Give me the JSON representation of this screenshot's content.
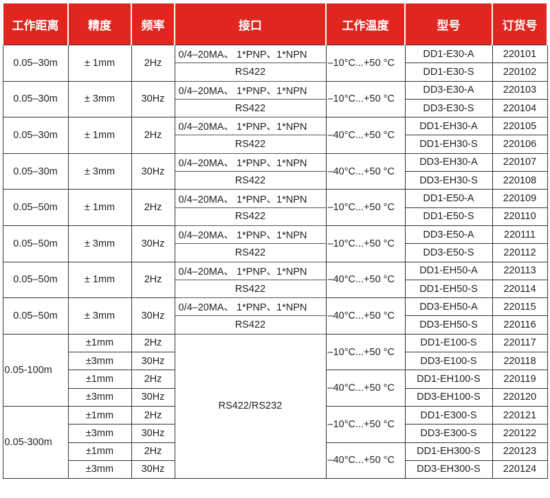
{
  "headers": [
    "工作距离",
    "精度",
    "频率",
    "接口",
    "工作温度",
    "型号",
    "订货号"
  ],
  "top_groups": [
    {
      "distance": "0.05–30m",
      "accuracy": "± 1mm",
      "freq": "2Hz",
      "iface": [
        "0/4–20MA、 1*PNP、1*NPN",
        "RS422"
      ],
      "temp": "–10°C...+50 °C",
      "models": [
        "DD1-E30-A",
        "DD1-E30-S"
      ],
      "codes": [
        "220101",
        "220102"
      ]
    },
    {
      "distance": "0.05–30m",
      "accuracy": "± 3mm",
      "freq": "30Hz",
      "iface": [
        "0/4–20MA、 1*PNP、1*NPN",
        "RS422"
      ],
      "temp": "–10°C...+50 °C",
      "models": [
        "DD3-E30-A",
        "DD3-E30-S"
      ],
      "codes": [
        "220103",
        "220104"
      ]
    },
    {
      "distance": "0.05–30m",
      "accuracy": "± 1mm",
      "freq": "2Hz",
      "iface": [
        "0/4–20MA、 1*PNP、1*NPN",
        "RS422"
      ],
      "temp": "–40°C...+50 °C",
      "models": [
        "DD1-EH30-A",
        "DD1-EH30-S"
      ],
      "codes": [
        "220105",
        "220106"
      ]
    },
    {
      "distance": "0.05–30m",
      "accuracy": "± 3mm",
      "freq": "30Hz",
      "iface": [
        "0/4–20MA、 1*PNP、1*NPN",
        "RS422"
      ],
      "temp": "–40°C...+50 °C",
      "models": [
        "DD3-EH30-A",
        "DD3-EH30-S"
      ],
      "codes": [
        "220107",
        "220108"
      ]
    },
    {
      "distance": "0.05–50m",
      "accuracy": "± 1mm",
      "freq": "2Hz",
      "iface": [
        "0/4–20MA、 1*PNP、1*NPN",
        "RS422"
      ],
      "temp": "–10°C...+50 °C",
      "models": [
        "DD1-E50-A",
        "DD1-E50-S"
      ],
      "codes": [
        "220109",
        "220110"
      ]
    },
    {
      "distance": "0.05–50m",
      "accuracy": "± 3mm",
      "freq": "30Hz",
      "iface": [
        "0/4–20MA、 1*PNP、1*NPN",
        "RS422"
      ],
      "temp": "–10°C...+50 °C",
      "models": [
        "DD3-E50-A",
        "DD3-E50-S"
      ],
      "codes": [
        "220111",
        "220112"
      ]
    },
    {
      "distance": "0.05–50m",
      "accuracy": "± 1mm",
      "freq": "2Hz",
      "iface": [
        "0/4–20MA、 1*PNP、1*NPN",
        "RS422"
      ],
      "temp": "–40°C...+50 °C",
      "models": [
        "DD1-EH50-A",
        "DD1-EH50-S"
      ],
      "codes": [
        "220113",
        "220114"
      ]
    },
    {
      "distance": "0.05–50m",
      "accuracy": "± 3mm",
      "freq": "30Hz",
      "iface": [
        "0/4–20MA、 1*PNP、1*NPN",
        "RS422"
      ],
      "temp": "–40°C...+50 °C",
      "models": [
        "DD3-EH50-A",
        "DD3-EH50-S"
      ],
      "codes": [
        "220115",
        "220116"
      ]
    }
  ],
  "bottom_interface": "RS422/RS232",
  "bottom_groups": [
    {
      "distance": "0.05-100m",
      "rows": [
        {
          "accuracy": "±1mm",
          "freq": "2Hz",
          "model": "DD1-E100-S",
          "code": "220117"
        },
        {
          "accuracy": "±3mm",
          "freq": "30Hz",
          "model": "DD3-E100-S",
          "code": "220118"
        },
        {
          "accuracy": "±1mm",
          "freq": "2Hz",
          "model": "DD1-EH100-S",
          "code": "220119"
        },
        {
          "accuracy": "±3mm",
          "freq": "30Hz",
          "model": "DD3-EH100-S",
          "code": "220120"
        }
      ],
      "temps": [
        "–10°C...+50 °C",
        "–40°C...+50 °C"
      ]
    },
    {
      "distance": "0.05-300m",
      "rows": [
        {
          "accuracy": "±1mm",
          "freq": "2Hz",
          "model": "DD1-E300-S",
          "code": "220121"
        },
        {
          "accuracy": "±3mm",
          "freq": "30Hz",
          "model": "DD3-E300-S",
          "code": "220122"
        },
        {
          "accuracy": "±1mm",
          "freq": "2Hz",
          "model": "DD1-EH300-S",
          "code": "220123"
        },
        {
          "accuracy": "±3mm",
          "freq": "30Hz",
          "model": "DD3-EH300-S",
          "code": "220124"
        }
      ],
      "temps": [
        "–10°C...+50 °C",
        "–40°C...+50 °C"
      ]
    }
  ],
  "colors": {
    "header_bg": "#e0261f",
    "header_text": "#ffffff"
  }
}
